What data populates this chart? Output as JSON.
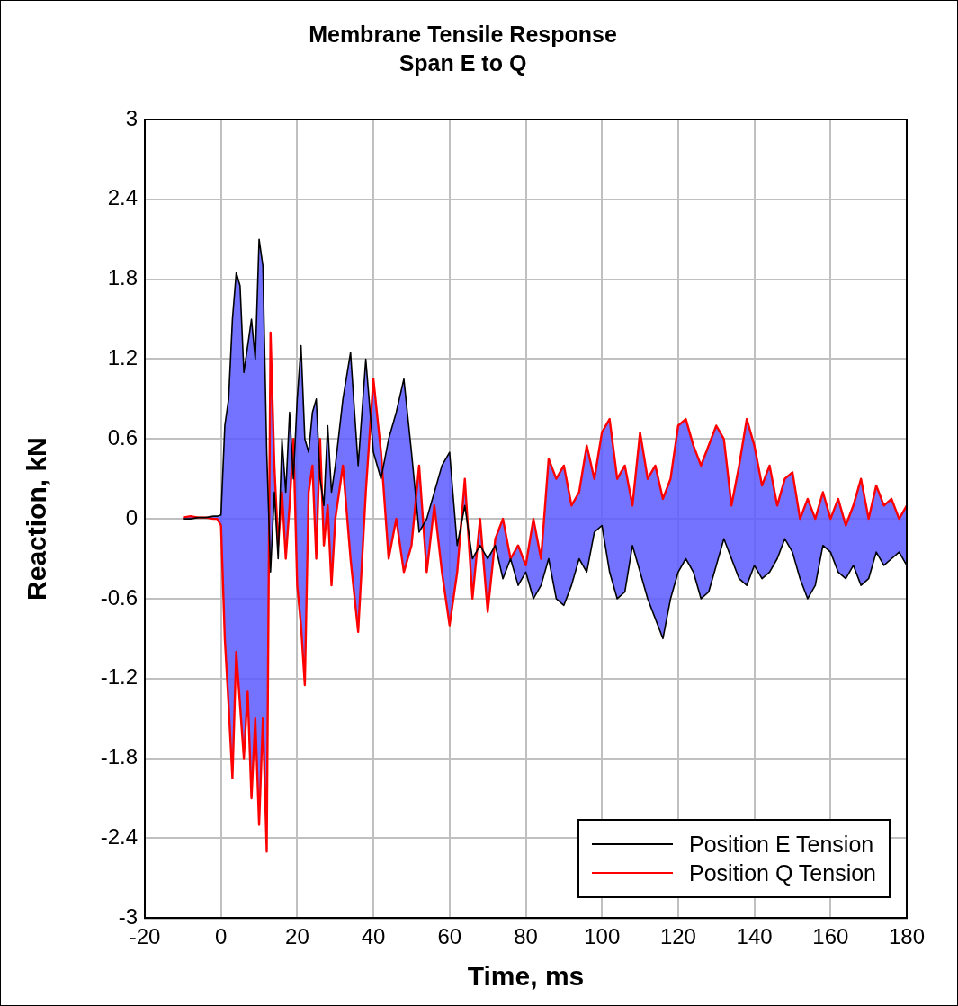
{
  "chart_data": {
    "type": "line",
    "title": "Membrane Tensile Response",
    "subtitle": "Span E to Q",
    "xlabel": "Time, ms",
    "ylabel": "Reaction, kN",
    "x": [
      -10,
      -8,
      -6,
      -4,
      -2,
      -1,
      0,
      1,
      2,
      3,
      4,
      5,
      6,
      7,
      8,
      9,
      10,
      11,
      12,
      13,
      14,
      15,
      16,
      17,
      18,
      19,
      20,
      21,
      22,
      23,
      24,
      25,
      26,
      27,
      28,
      29,
      30,
      32,
      34,
      36,
      38,
      40,
      42,
      44,
      46,
      48,
      50,
      52,
      54,
      56,
      58,
      60,
      62,
      64,
      66,
      68,
      70,
      72,
      74,
      76,
      78,
      80,
      82,
      84,
      86,
      88,
      90,
      92,
      94,
      96,
      98,
      100,
      102,
      104,
      106,
      108,
      110,
      112,
      114,
      116,
      118,
      120,
      122,
      124,
      126,
      128,
      130,
      132,
      134,
      136,
      138,
      140,
      142,
      144,
      146,
      148,
      150,
      152,
      154,
      156,
      158,
      160,
      162,
      164,
      166,
      168,
      170,
      172,
      174,
      176,
      178,
      180
    ],
    "series": [
      {
        "name": "Position E Tension",
        "color": "#000000",
        "values": [
          0,
          0,
          0.01,
          0.01,
          0.02,
          0.02,
          0.03,
          0.7,
          0.9,
          1.5,
          1.85,
          1.75,
          1.1,
          1.3,
          1.5,
          1.2,
          2.1,
          1.9,
          0.5,
          -0.4,
          0.2,
          -0.3,
          0.6,
          0.2,
          0.8,
          0.3,
          0.9,
          1.3,
          0.6,
          0.5,
          0.8,
          0.9,
          0.3,
          0.1,
          0.7,
          0.2,
          0.4,
          0.9,
          1.25,
          0.4,
          1.2,
          0.5,
          0.3,
          0.6,
          0.8,
          1.05,
          0.5,
          -0.1,
          0,
          0.2,
          0.4,
          0.5,
          -0.2,
          0.1,
          -0.3,
          -0.2,
          -0.3,
          -0.2,
          -0.45,
          -0.3,
          -0.5,
          -0.4,
          -0.6,
          -0.5,
          -0.3,
          -0.6,
          -0.65,
          -0.5,
          -0.3,
          -0.4,
          -0.1,
          -0.05,
          -0.4,
          -0.6,
          -0.55,
          -0.2,
          -0.4,
          -0.6,
          -0.75,
          -0.9,
          -0.6,
          -0.4,
          -0.3,
          -0.4,
          -0.6,
          -0.55,
          -0.35,
          -0.15,
          -0.3,
          -0.45,
          -0.5,
          -0.35,
          -0.45,
          -0.4,
          -0.3,
          -0.15,
          -0.25,
          -0.45,
          -0.6,
          -0.5,
          -0.2,
          -0.25,
          -0.4,
          -0.45,
          -0.35,
          -0.5,
          -0.45,
          -0.25,
          -0.35,
          -0.3,
          -0.25,
          -0.35
        ],
        "lower": [
          0,
          0,
          0.01,
          0.01,
          0.02,
          0.02,
          0.03,
          0.7,
          0.9,
          1.5,
          1.85,
          1.75,
          1.1,
          1.3,
          1.5,
          1.2,
          2.1,
          1.9,
          0.5,
          -0.4,
          0.2,
          -0.3,
          0.6,
          0.2,
          0.8,
          0.3,
          0.9,
          1.3,
          0.6,
          0.5,
          0.8,
          0.9,
          0.3,
          0.1,
          0.7,
          0.2,
          0.4,
          0.9,
          1.25,
          0.4,
          1.2,
          0.5,
          0.3,
          0.6,
          0.8,
          1.05,
          0.5,
          -0.1,
          0,
          0.2,
          0.4,
          0.5,
          -0.2,
          0.1,
          -0.3,
          -0.2,
          -0.3,
          -0.2,
          -0.45,
          -0.3,
          -0.5,
          -0.4,
          -0.6,
          -0.5,
          -0.3,
          -0.6,
          -0.65,
          -0.5,
          -0.3,
          -0.4,
          -0.1,
          -0.05,
          -0.4,
          -0.6,
          -0.55,
          -0.2,
          -0.4,
          -0.6,
          -0.75,
          -0.9,
          -0.6,
          -0.4,
          -0.3,
          -0.4,
          -0.6,
          -0.55,
          -0.35,
          -0.15,
          -0.3,
          -0.45,
          -0.5,
          -0.35,
          -0.45,
          -0.4,
          -0.3,
          -0.15,
          -0.25,
          -0.45,
          -0.6,
          -0.5,
          -0.2,
          -0.25,
          -0.4,
          -0.45,
          -0.35,
          -0.5,
          -0.45,
          -0.25,
          -0.35,
          -0.3,
          -0.25,
          -0.35
        ],
        "upper": [
          0.01,
          0.02,
          0.01,
          0.01,
          0,
          0,
          -0.05,
          -0.9,
          -1.4,
          -1.95,
          -1,
          -1.4,
          -1.8,
          -1.3,
          -2.1,
          -1.5,
          -2.3,
          -1.5,
          -2.5,
          1.4,
          0.4,
          -0.2,
          0.2,
          -0.3,
          0.1,
          0.6,
          -0.5,
          -0.8,
          -1.25,
          0.2,
          0.4,
          -0.3,
          0.6,
          -0.2,
          0.1,
          -0.5,
          0,
          0.4,
          -0.3,
          -0.85,
          0.2,
          1.05,
          0.5,
          -0.3,
          0,
          -0.4,
          -0.2,
          0.4,
          -0.4,
          0.1,
          -0.4,
          -0.8,
          -0.4,
          0.3,
          -0.6,
          0,
          -0.7,
          -0.15,
          0,
          -0.3,
          -0.2,
          -0.35,
          0,
          -0.3,
          0.45,
          0.3,
          0.4,
          0.1,
          0.2,
          0.55,
          0.3,
          0.65,
          0.75,
          0.3,
          0.4,
          0.1,
          0.65,
          0.3,
          0.4,
          0.15,
          0.3,
          0.7,
          0.75,
          0.55,
          0.4,
          0.55,
          0.7,
          0.6,
          0.1,
          0.4,
          0.75,
          0.55,
          0.25,
          0.4,
          0.1,
          0.3,
          0.35,
          0,
          0.15,
          0,
          0.2,
          0,
          0.15,
          -0.05,
          0.1,
          0.3,
          0,
          0.25,
          0.1,
          0.15,
          0,
          0.1
        ]
      },
      {
        "name": "Position Q Tension",
        "color": "#ff0000",
        "values": [
          0.01,
          0.02,
          0.01,
          0.01,
          0,
          0,
          -0.05,
          -0.9,
          -1.4,
          -1.95,
          -1,
          -1.4,
          -1.8,
          -1.3,
          -2.1,
          -1.5,
          -2.3,
          -1.5,
          -2.5,
          1.4,
          0.4,
          -0.2,
          0.2,
          -0.3,
          0.1,
          0.6,
          -0.5,
          -0.8,
          -1.25,
          0.2,
          0.4,
          -0.3,
          0.6,
          -0.2,
          0.1,
          -0.5,
          0,
          0.4,
          -0.3,
          -0.85,
          0.2,
          1.05,
          0.5,
          -0.3,
          0,
          -0.4,
          -0.2,
          0.4,
          -0.4,
          0.1,
          -0.4,
          -0.8,
          -0.4,
          0.3,
          -0.6,
          0,
          -0.7,
          -0.15,
          0,
          -0.3,
          -0.2,
          -0.35,
          0,
          -0.3,
          0.45,
          0.3,
          0.4,
          0.1,
          0.2,
          0.55,
          0.3,
          0.65,
          0.75,
          0.3,
          0.4,
          0.1,
          0.65,
          0.3,
          0.4,
          0.15,
          0.3,
          0.7,
          0.75,
          0.55,
          0.4,
          0.55,
          0.7,
          0.6,
          0.1,
          0.4,
          0.75,
          0.55,
          0.25,
          0.4,
          0.1,
          0.3,
          0.35,
          0,
          0.15,
          0,
          0.2,
          0,
          0.15,
          -0.05,
          0.1,
          0.3,
          0,
          0.25,
          0.1,
          0.15,
          0,
          0.1
        ]
      }
    ],
    "xlim": [
      -20,
      180
    ],
    "xticks": [
      -20,
      0,
      20,
      40,
      60,
      80,
      100,
      120,
      140,
      160,
      180
    ],
    "ylim": [
      -3,
      3
    ],
    "yticks": [
      -3,
      -2.4,
      -1.8,
      -1.2,
      -0.6,
      0,
      0.6,
      1.2,
      1.8,
      2.4,
      3
    ],
    "grid": true,
    "legend": "bottom right",
    "marker": "none",
    "line_style": "solid"
  }
}
